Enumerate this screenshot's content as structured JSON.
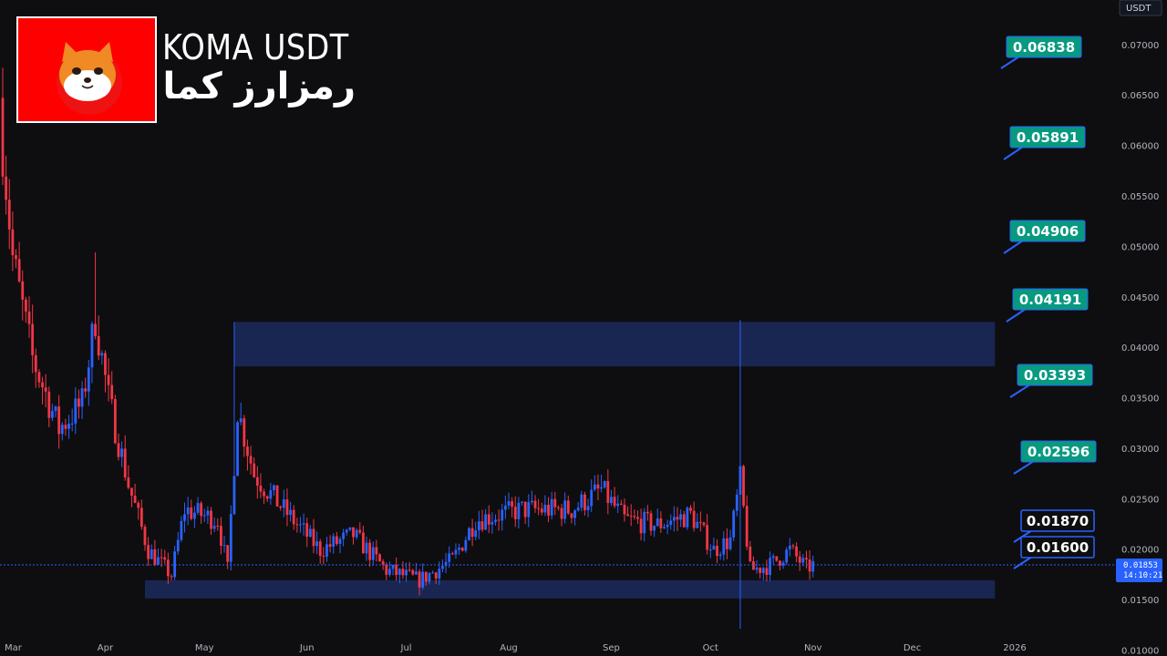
{
  "logo": {
    "title": "KOMA USDT",
    "subtitle": "رمزارز کما",
    "background_color": "#ff0000",
    "icon": "shiba-dog-face-icon"
  },
  "price_axis": {
    "unit": "USDT",
    "ticks": [
      "0.07000",
      "0.06500",
      "0.06000",
      "0.05500",
      "0.05000",
      "0.04500",
      "0.04000",
      "0.03500",
      "0.03000",
      "0.02500",
      "0.02000",
      "0.01500",
      "0.01000"
    ],
    "current_price": "0.01853",
    "countdown": "14:10:21",
    "current_price_color": "#2962ff"
  },
  "time_axis": {
    "ticks": [
      "Mar",
      "Apr",
      "May",
      "Jun",
      "Jul",
      "Aug",
      "Sep",
      "Oct",
      "Nov",
      "Dec",
      "2026"
    ]
  },
  "targets": [
    "0.06838",
    "0.05891",
    "0.04906",
    "0.04191",
    "0.03393",
    "0.02596"
  ],
  "levels": [
    "0.01870",
    "0.01600"
  ],
  "colors": {
    "up": "#2962ff",
    "down": "#f23645",
    "zone": "#1c2a5e",
    "target_bg": "#089981",
    "level_border": "#2962ff"
  },
  "chart_data": {
    "type": "candlestick",
    "symbol": "KOMA USDT",
    "y_unit": "USDT",
    "ylim": [
      0.0095,
      0.0745
    ],
    "x_range": [
      "2025-03-01",
      "2026-01-01"
    ],
    "zones": [
      {
        "name": "resistance",
        "from": "2025-05-10",
        "to": "2025-12-26",
        "low": 0.0382,
        "high": 0.0426
      },
      {
        "name": "support",
        "from": "2025-04-13",
        "to": "2025-12-26",
        "low": 0.0152,
        "high": 0.017
      }
    ],
    "anchor_points": [
      {
        "date": "2025-03-01",
        "close": 0.06
      },
      {
        "date": "2025-03-04",
        "close": 0.049
      },
      {
        "date": "2025-03-10",
        "close": 0.039
      },
      {
        "date": "2025-03-18",
        "close": 0.032
      },
      {
        "date": "2025-03-25",
        "close": 0.0345
      },
      {
        "date": "2025-03-29",
        "close": 0.043
      },
      {
        "date": "2025-04-02",
        "close": 0.035
      },
      {
        "date": "2025-04-08",
        "close": 0.0265
      },
      {
        "date": "2025-04-14",
        "close": 0.02
      },
      {
        "date": "2025-04-21",
        "close": 0.0175
      },
      {
        "date": "2025-04-25",
        "close": 0.024
      },
      {
        "date": "2025-05-05",
        "close": 0.023
      },
      {
        "date": "2025-05-08",
        "close": 0.018
      },
      {
        "date": "2025-05-11",
        "close": 0.034
      },
      {
        "date": "2025-05-16",
        "close": 0.0275
      },
      {
        "date": "2025-05-25",
        "close": 0.024
      },
      {
        "date": "2025-06-05",
        "close": 0.02
      },
      {
        "date": "2025-06-15",
        "close": 0.0215
      },
      {
        "date": "2025-06-25",
        "close": 0.018
      },
      {
        "date": "2025-07-05",
        "close": 0.017
      },
      {
        "date": "2025-07-15",
        "close": 0.019
      },
      {
        "date": "2025-07-22",
        "close": 0.023
      },
      {
        "date": "2025-08-05",
        "close": 0.024
      },
      {
        "date": "2025-08-20",
        "close": 0.024
      },
      {
        "date": "2025-08-29",
        "close": 0.026
      },
      {
        "date": "2025-09-05",
        "close": 0.023
      },
      {
        "date": "2025-09-15",
        "close": 0.0225
      },
      {
        "date": "2025-09-25",
        "close": 0.0235
      },
      {
        "date": "2025-10-02",
        "close": 0.02
      },
      {
        "date": "2025-10-07",
        "close": 0.021
      },
      {
        "date": "2025-10-10",
        "close": 0.027
      },
      {
        "date": "2025-10-13",
        "close": 0.018
      },
      {
        "date": "2025-10-19",
        "close": 0.0185
      },
      {
        "date": "2025-10-25",
        "close": 0.02
      },
      {
        "date": "2025-10-30",
        "close": 0.0182
      },
      {
        "date": "2025-11-01",
        "close": 0.0185
      }
    ],
    "spikes": [
      {
        "date": "2025-03-29",
        "high": 0.0495
      },
      {
        "date": "2025-05-10",
        "high": 0.0426
      },
      {
        "date": "2025-10-10",
        "high": 0.0428,
        "low": 0.0122
      }
    ]
  }
}
